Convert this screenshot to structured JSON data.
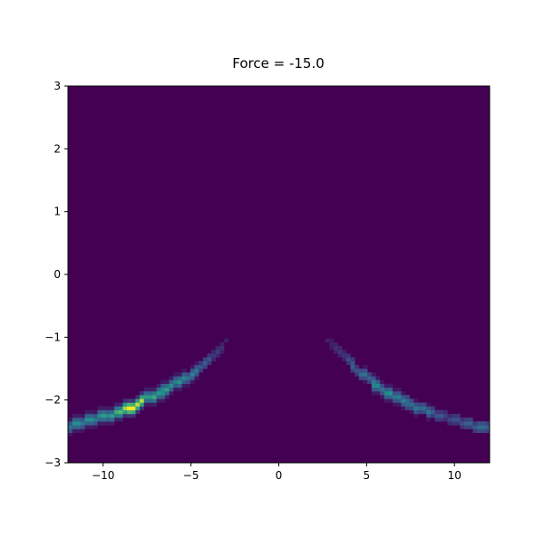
{
  "chart_data": {
    "type": "heatmap",
    "title": "Force = -15.0",
    "xlabel": "",
    "ylabel": "",
    "xlim": [
      -12,
      12
    ],
    "ylim": [
      -3,
      3
    ],
    "bins": [
      100,
      100
    ],
    "xticks": [
      "−10",
      "−5",
      "0",
      "5",
      "10"
    ],
    "xtick_values": [
      -10,
      -5,
      0,
      5,
      10
    ],
    "yticks": [
      "−3",
      "−2",
      "−1",
      "0",
      "1",
      "2",
      "3"
    ],
    "ytick_values": [
      -3,
      -2,
      -1,
      0,
      1,
      2,
      3
    ],
    "colormap": "viridis",
    "background_color": "#440154",
    "grid": false,
    "ridges": [
      {
        "points": [
          [
            -11.8,
            -2.42,
            0.45
          ],
          [
            -10.5,
            -2.3,
            0.45
          ],
          [
            -9.3,
            -2.2,
            0.55
          ],
          [
            -8.3,
            -2.1,
            1.0
          ],
          [
            -7.5,
            -1.98,
            0.55
          ],
          [
            -6.5,
            -1.85,
            0.5
          ],
          [
            -5.6,
            -1.7,
            0.45
          ],
          [
            -4.6,
            -1.52,
            0.35
          ],
          [
            -3.7,
            -1.3,
            0.2
          ],
          [
            -3.0,
            -1.08,
            0.1
          ]
        ]
      },
      {
        "points": [
          [
            2.7,
            -1.05,
            0.08
          ],
          [
            3.5,
            -1.22,
            0.15
          ],
          [
            4.5,
            -1.52,
            0.3
          ],
          [
            5.5,
            -1.75,
            0.4
          ],
          [
            6.3,
            -1.9,
            0.45
          ],
          [
            7.2,
            -2.02,
            0.35
          ],
          [
            8.4,
            -2.18,
            0.35
          ],
          [
            9.5,
            -2.27,
            0.2
          ],
          [
            10.5,
            -2.35,
            0.25
          ],
          [
            11.9,
            -2.45,
            0.35
          ]
        ]
      }
    ]
  }
}
